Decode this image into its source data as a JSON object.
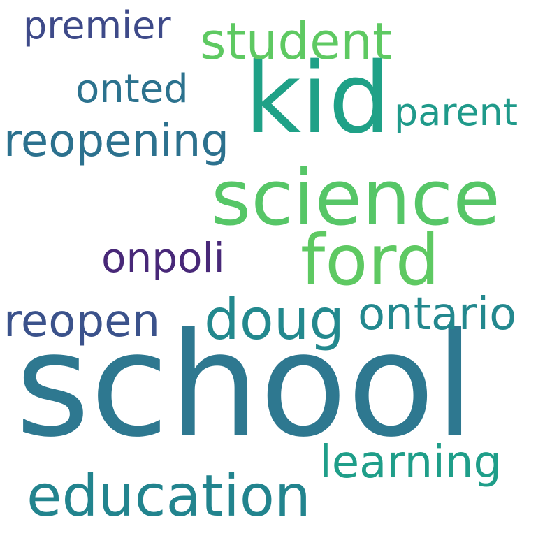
{
  "words": [
    {
      "text": "school",
      "color": "#2e7890"
    },
    {
      "text": "kid",
      "color": "#1fa187"
    },
    {
      "text": "science",
      "color": "#56c667"
    },
    {
      "text": "ford",
      "color": "#5ec962"
    },
    {
      "text": "student",
      "color": "#5ec962"
    },
    {
      "text": "education",
      "color": "#22848e"
    },
    {
      "text": "doug",
      "color": "#23898e"
    },
    {
      "text": "learning",
      "color": "#1f9e89"
    },
    {
      "text": "ontario",
      "color": "#23888e"
    },
    {
      "text": "reopening",
      "color": "#2c718e"
    },
    {
      "text": "reopen",
      "color": "#3b528b"
    },
    {
      "text": "onpoli",
      "color": "#482878"
    },
    {
      "text": "parent",
      "color": "#1f9a8a"
    },
    {
      "text": "onted",
      "color": "#2c728e"
    },
    {
      "text": "premier",
      "color": "#3e4a89"
    }
  ]
}
